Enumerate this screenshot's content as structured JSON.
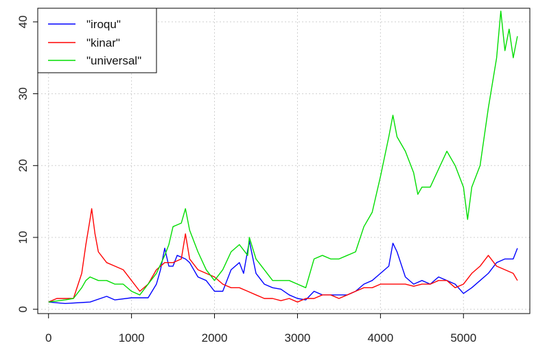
{
  "chart_data": {
    "type": "line",
    "title": "",
    "xlabel": "",
    "ylabel": "",
    "xlim": [
      -130,
      5800
    ],
    "ylim": [
      -0.6,
      41.9
    ],
    "x_ticks": [
      "0",
      "1000",
      "2000",
      "3000",
      "4000",
      "5000"
    ],
    "y_ticks": [
      "0",
      "10",
      "20",
      "30",
      "40"
    ],
    "grid": true,
    "legend_position": "top-left",
    "series": [
      {
        "name": "\"iroqu\"",
        "color": "#0000ff",
        "x": [
          0,
          200,
          500,
          700,
          800,
          1000,
          1200,
          1300,
          1350,
          1400,
          1450,
          1500,
          1550,
          1650,
          1700,
          1800,
          1900,
          2000,
          2100,
          2200,
          2300,
          2350,
          2420,
          2500,
          2600,
          2700,
          2800,
          2900,
          3000,
          3100,
          3200,
          3300,
          3400,
          3500,
          3600,
          3700,
          3800,
          3900,
          4000,
          4100,
          4150,
          4200,
          4300,
          4400,
          4500,
          4600,
          4700,
          4800,
          4900,
          5000,
          5100,
          5200,
          5300,
          5400,
          5500,
          5600,
          5650
        ],
        "y": [
          1.0,
          0.8,
          1.0,
          1.8,
          1.3,
          1.6,
          1.6,
          3.5,
          5.5,
          8.5,
          6.0,
          6.0,
          7.5,
          7.0,
          6.5,
          4.5,
          4.0,
          2.5,
          2.5,
          5.5,
          6.5,
          5.0,
          9.5,
          5.0,
          3.5,
          3.0,
          2.8,
          2.0,
          1.5,
          1.3,
          2.5,
          2.0,
          2.0,
          2.0,
          2.0,
          2.5,
          3.5,
          4.0,
          5.0,
          6.0,
          9.2,
          8.0,
          4.5,
          3.5,
          4.0,
          3.5,
          4.5,
          4.0,
          3.5,
          2.2,
          3.0,
          4.0,
          5.0,
          6.5,
          7.0,
          7.0,
          8.5
        ]
      },
      {
        "name": "\"kinar\"",
        "color": "#ff0000",
        "x": [
          0,
          100,
          300,
          400,
          450,
          500,
          520,
          560,
          600,
          700,
          800,
          900,
          1000,
          1100,
          1200,
          1300,
          1400,
          1500,
          1600,
          1650,
          1700,
          1800,
          1900,
          2000,
          2100,
          2200,
          2300,
          2400,
          2500,
          2600,
          2700,
          2800,
          2900,
          3000,
          3100,
          3200,
          3300,
          3400,
          3500,
          3600,
          3700,
          3800,
          3900,
          4000,
          4100,
          4200,
          4300,
          4400,
          4500,
          4600,
          4700,
          4800,
          4900,
          5000,
          5100,
          5200,
          5300,
          5400,
          5500,
          5600,
          5650
        ],
        "y": [
          1.0,
          1.5,
          1.5,
          5.0,
          9.0,
          12.5,
          14.0,
          10.5,
          8.0,
          6.5,
          6.0,
          5.5,
          4.0,
          2.5,
          3.5,
          5.5,
          6.5,
          6.5,
          7.0,
          10.5,
          7.0,
          5.5,
          5.0,
          4.5,
          3.5,
          3.0,
          3.0,
          2.5,
          2.0,
          1.5,
          1.5,
          1.2,
          1.5,
          1.0,
          1.5,
          1.5,
          2.0,
          2.0,
          1.5,
          2.0,
          2.5,
          3.0,
          3.0,
          3.5,
          3.5,
          3.5,
          3.5,
          3.2,
          3.5,
          3.5,
          4.0,
          4.0,
          3.0,
          3.5,
          5.0,
          6.0,
          7.5,
          6.0,
          5.5,
          5.0,
          4.0
        ]
      },
      {
        "name": "\"universal\"",
        "color": "#00dd00",
        "x": [
          0,
          200,
          300,
          400,
          450,
          500,
          600,
          700,
          800,
          900,
          1000,
          1100,
          1200,
          1300,
          1400,
          1450,
          1500,
          1600,
          1650,
          1700,
          1800,
          1900,
          2000,
          2100,
          2200,
          2300,
          2400,
          2420,
          2500,
          2600,
          2700,
          2800,
          2900,
          3000,
          3100,
          3200,
          3300,
          3400,
          3500,
          3600,
          3700,
          3800,
          3900,
          4000,
          4100,
          4150,
          4200,
          4300,
          4400,
          4450,
          4500,
          4600,
          4700,
          4800,
          4900,
          5000,
          5050,
          5100,
          5200,
          5300,
          5400,
          5450,
          5500,
          5550,
          5600,
          5650
        ],
        "y": [
          1.0,
          1.3,
          1.5,
          3.0,
          4.0,
          4.5,
          4.0,
          4.0,
          3.5,
          3.5,
          2.5,
          2.0,
          3.5,
          5.0,
          7.5,
          9.0,
          11.5,
          12.0,
          14.0,
          11.0,
          8.0,
          5.5,
          4.0,
          5.5,
          8.0,
          9.0,
          7.5,
          10.0,
          7.0,
          5.5,
          4.0,
          4.0,
          4.0,
          3.5,
          3.0,
          7.0,
          7.5,
          7.0,
          7.0,
          7.5,
          8.0,
          11.5,
          13.5,
          18.5,
          24.0,
          27.0,
          24.0,
          22.0,
          19.0,
          16.0,
          17.0,
          17.0,
          19.5,
          22.0,
          20.0,
          17.0,
          12.5,
          17.0,
          20.0,
          28.0,
          35.0,
          41.5,
          36.0,
          39.0,
          35.0,
          38.0
        ]
      }
    ]
  }
}
